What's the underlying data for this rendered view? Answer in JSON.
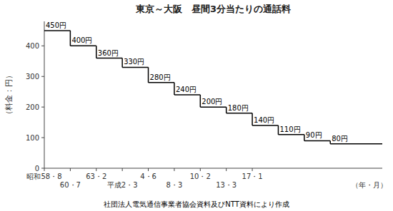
{
  "chart_data": {
    "type": "step",
    "title": "東京～大阪　昼間3分当たりの通話料",
    "y_label": "（料金：円）",
    "x_label": "（年・月）",
    "footnote": "社団法人電気通信事業者協会資料及びNTT資料により作成",
    "categories": [
      "昭和58・8",
      "60・7",
      "63・2",
      "平成2・3",
      "4・6",
      "8・3",
      "10・2",
      "13・3",
      "17・1",
      null,
      null,
      null
    ],
    "values": [
      450,
      400,
      360,
      330,
      280,
      240,
      200,
      180,
      140,
      110,
      90,
      80
    ],
    "value_labels": [
      "450円",
      "400円",
      "360円",
      "330円",
      "280円",
      "240円",
      "200円",
      "180円",
      "140円",
      "110円",
      "90円",
      "80円"
    ],
    "data_labels": true,
    "color": "#000000",
    "ylim": [
      0,
      480
    ],
    "yticks": [
      0,
      100,
      200,
      300,
      400
    ],
    "grid": false
  }
}
